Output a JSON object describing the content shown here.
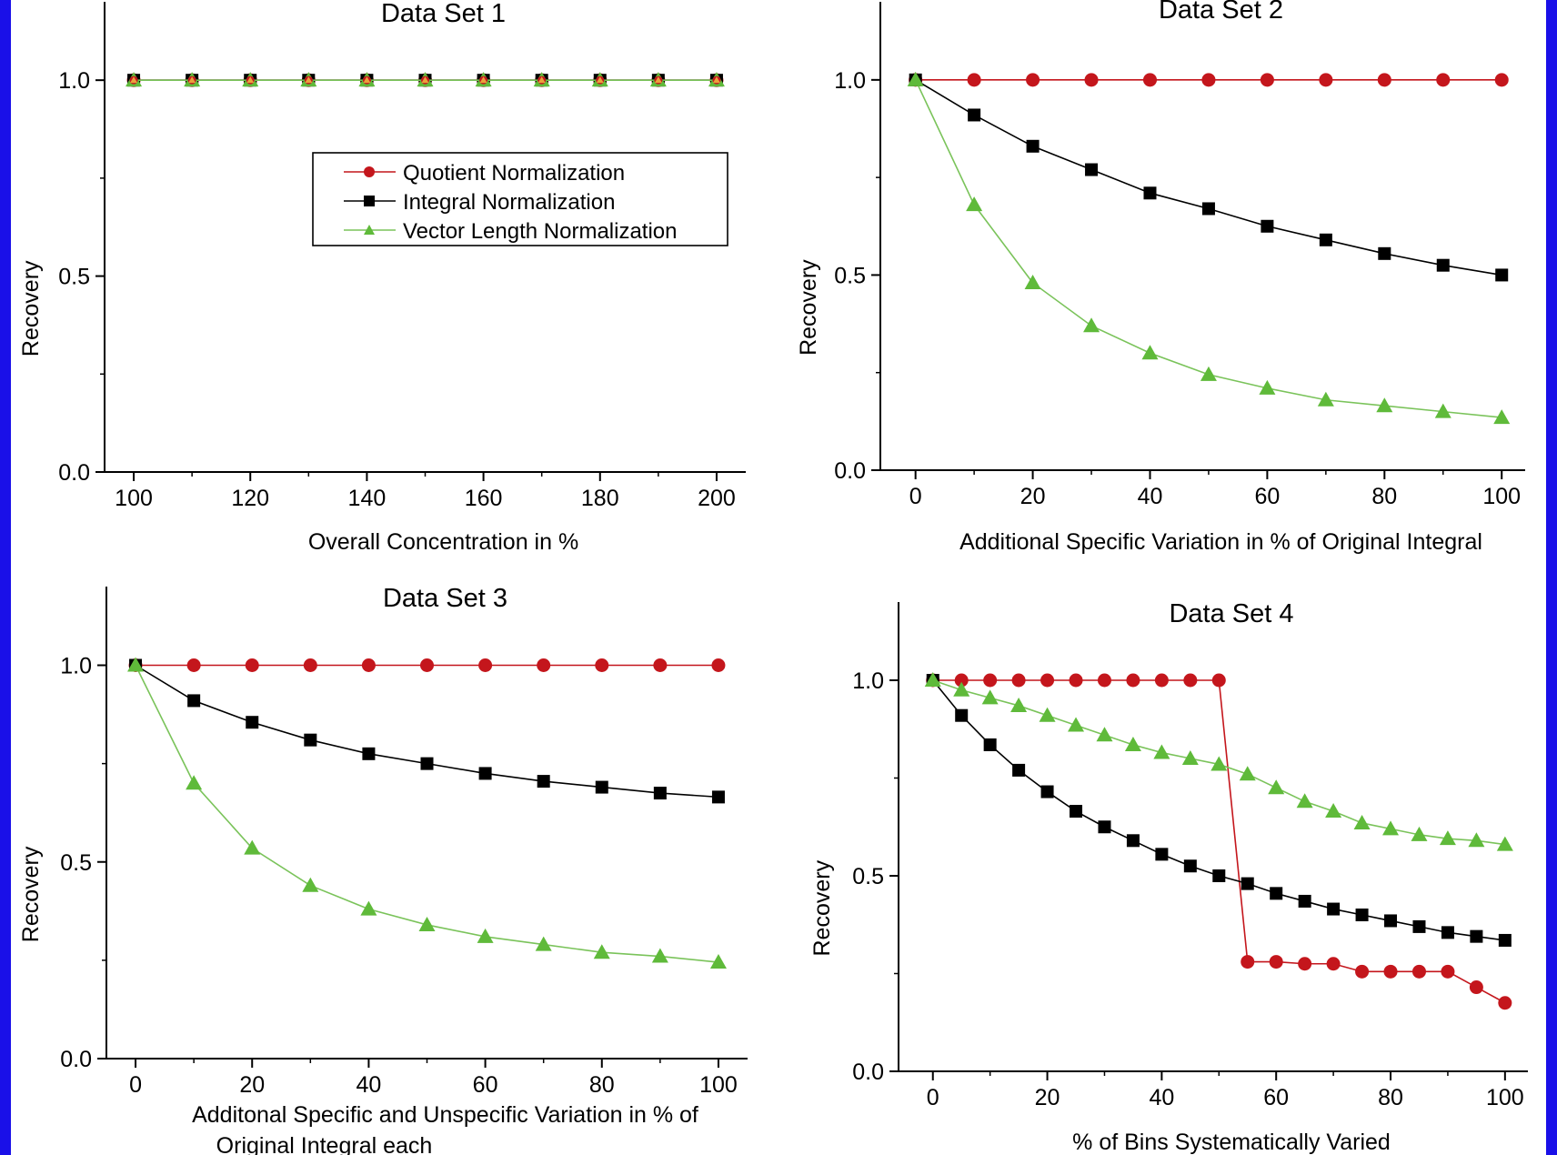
{
  "colors": {
    "border": "#1a10e8",
    "quotient": "#c4161c",
    "integral": "#000000",
    "vector": "#5fba3a",
    "vector_line": "#7ac35a"
  },
  "legend": {
    "placement": "upper-middle of Data Set 1",
    "entries": [
      {
        "label": "Quotient Normalization",
        "marker": "circle",
        "color": "#c4161c"
      },
      {
        "label": "Integral Normalization",
        "marker": "square",
        "color": "#000000"
      },
      {
        "label": "Vector Length Normalization",
        "marker": "triangle",
        "color": "#5fba3a"
      }
    ]
  },
  "chart_data": [
    {
      "type": "line",
      "title": "Data Set 1",
      "xlabel": "Overall Concentration in %",
      "xlabel2": "",
      "ylabel": "Recovery",
      "xlim": [
        95,
        205
      ],
      "ylim": [
        0,
        1.2
      ],
      "xticks": [
        100,
        120,
        140,
        160,
        180,
        200
      ],
      "yticks": [
        0.0,
        0.5,
        1.0
      ],
      "x": [
        100,
        110,
        120,
        130,
        140,
        150,
        160,
        170,
        180,
        190,
        200
      ],
      "series": [
        {
          "name": "Quotient Normalization",
          "values": [
            1,
            1,
            1,
            1,
            1,
            1,
            1,
            1,
            1,
            1,
            1
          ]
        },
        {
          "name": "Integral Normalization",
          "values": [
            1,
            1,
            1,
            1,
            1,
            1,
            1,
            1,
            1,
            1,
            1
          ]
        },
        {
          "name": "Vector Length Normalization",
          "values": [
            1,
            1,
            1,
            1,
            1,
            1,
            1,
            1,
            1,
            1,
            1
          ]
        }
      ]
    },
    {
      "type": "line",
      "title": "Data Set 2",
      "xlabel": "Additional Specific Variation in % of Original Integral",
      "xlabel2": "",
      "ylabel": "Recovery",
      "xlim": [
        -6,
        104
      ],
      "ylim": [
        0,
        1.2
      ],
      "xticks": [
        0,
        20,
        40,
        60,
        80,
        100
      ],
      "yticks": [
        0.0,
        0.5,
        1.0
      ],
      "x": [
        0,
        10,
        20,
        30,
        40,
        50,
        60,
        70,
        80,
        90,
        100
      ],
      "series": [
        {
          "name": "Quotient Normalization",
          "values": [
            1,
            1,
            1,
            1,
            1,
            1,
            1,
            1,
            1,
            1,
            1
          ]
        },
        {
          "name": "Integral Normalization",
          "values": [
            1.0,
            0.91,
            0.83,
            0.77,
            0.71,
            0.67,
            0.625,
            0.59,
            0.555,
            0.525,
            0.5
          ]
        },
        {
          "name": "Vector Length Normalization",
          "values": [
            1.0,
            0.68,
            0.48,
            0.37,
            0.3,
            0.245,
            0.21,
            0.18,
            0.165,
            0.15,
            0.135
          ]
        }
      ]
    },
    {
      "type": "line",
      "title": "Data Set 3",
      "xlabel": "Additonal Specific and Unspecific Variation in % of",
      "xlabel2": "Original Integral each",
      "ylabel": "Recovery",
      "xlim": [
        -5,
        105
      ],
      "ylim": [
        0,
        1.2
      ],
      "xticks": [
        0,
        20,
        40,
        60,
        80,
        100
      ],
      "yticks": [
        0.0,
        0.5,
        1.0
      ],
      "x": [
        0,
        10,
        20,
        30,
        40,
        50,
        60,
        70,
        80,
        90,
        100
      ],
      "series": [
        {
          "name": "Quotient Normalization",
          "values": [
            1,
            1,
            1,
            1,
            1,
            1,
            1,
            1,
            1,
            1,
            1
          ]
        },
        {
          "name": "Integral Normalization",
          "values": [
            1.0,
            0.91,
            0.855,
            0.81,
            0.775,
            0.75,
            0.725,
            0.705,
            0.69,
            0.675,
            0.665
          ]
        },
        {
          "name": "Vector Length Normalization",
          "values": [
            1.0,
            0.7,
            0.535,
            0.44,
            0.38,
            0.34,
            0.31,
            0.29,
            0.27,
            0.26,
            0.245
          ]
        }
      ]
    },
    {
      "type": "line",
      "title": "Data Set 4",
      "xlabel": "% of Bins Systematically Varied",
      "xlabel2": "",
      "ylabel": "Recovery",
      "xlim": [
        -6,
        104
      ],
      "ylim": [
        0,
        1.2
      ],
      "xticks": [
        0,
        20,
        40,
        60,
        80,
        100
      ],
      "yticks": [
        0.0,
        0.5,
        1.0
      ],
      "x": [
        0,
        5,
        10,
        15,
        20,
        25,
        30,
        35,
        40,
        45,
        50,
        55,
        60,
        65,
        70,
        75,
        80,
        85,
        90,
        95,
        100
      ],
      "series": [
        {
          "name": "Quotient Normalization",
          "values": [
            1,
            1,
            1,
            1,
            1,
            1,
            1,
            1,
            1,
            1,
            1,
            0.28,
            0.28,
            0.275,
            0.275,
            0.255,
            0.255,
            0.255,
            0.255,
            0.215,
            0.175
          ]
        },
        {
          "name": "Integral Normalization",
          "values": [
            1.0,
            0.91,
            0.835,
            0.77,
            0.715,
            0.665,
            0.625,
            0.59,
            0.555,
            0.525,
            0.5,
            0.48,
            0.455,
            0.435,
            0.415,
            0.4,
            0.385,
            0.37,
            0.355,
            0.345,
            0.335
          ]
        },
        {
          "name": "Vector Length Normalization",
          "values": [
            1.0,
            0.975,
            0.955,
            0.935,
            0.91,
            0.885,
            0.86,
            0.835,
            0.815,
            0.8,
            0.785,
            0.76,
            0.725,
            0.69,
            0.665,
            0.635,
            0.62,
            0.605,
            0.595,
            0.59,
            0.58
          ]
        }
      ]
    }
  ]
}
